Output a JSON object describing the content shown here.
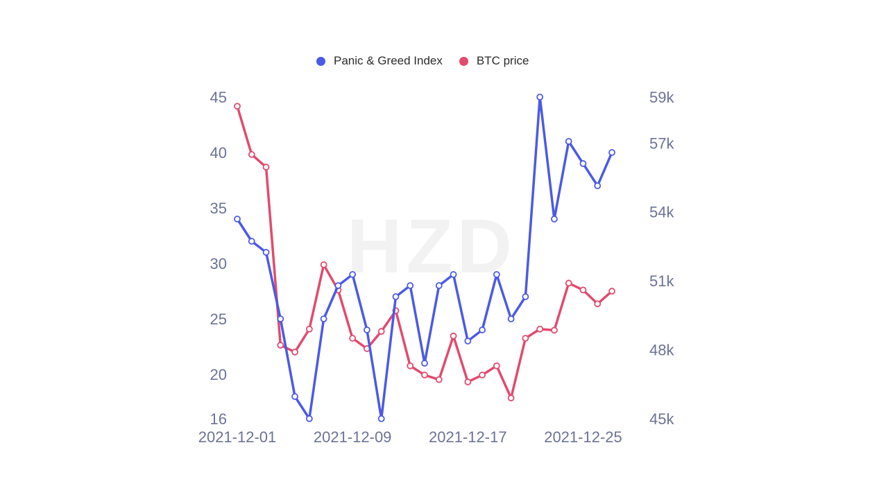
{
  "watermark": "HZD",
  "colors": {
    "index": "#4b5ae6",
    "price": "#e24a6e",
    "axis_text": "#6b7396"
  },
  "chart_data": {
    "type": "line",
    "legend": [
      "Panic & Greed Index",
      "BTC price"
    ],
    "x": [
      "2021-12-01",
      "2021-12-02",
      "2021-12-03",
      "2021-12-04",
      "2021-12-05",
      "2021-12-06",
      "2021-12-07",
      "2021-12-08",
      "2021-12-09",
      "2021-12-10",
      "2021-12-11",
      "2021-12-12",
      "2021-12-13",
      "2021-12-14",
      "2021-12-15",
      "2021-12-16",
      "2021-12-17",
      "2021-12-18",
      "2021-12-19",
      "2021-12-20",
      "2021-12-21",
      "2021-12-22",
      "2021-12-23",
      "2021-12-24",
      "2021-12-25",
      "2021-12-26",
      "2021-12-27"
    ],
    "x_tick_labels": [
      "2021-12-01",
      "2021-12-09",
      "2021-12-17",
      "2021-12-25"
    ],
    "series": [
      {
        "name": "Panic & Greed Index",
        "axis": "left",
        "values": [
          34,
          32,
          31,
          25,
          18,
          16,
          25,
          28,
          29,
          24,
          16,
          27,
          28,
          21,
          28,
          29,
          23,
          24,
          29,
          25,
          27,
          45,
          34,
          41,
          39,
          37,
          40
        ]
      },
      {
        "name": "BTC price",
        "axis": "right",
        "values": [
          58600,
          56500,
          55950,
          48200,
          47900,
          48900,
          51700,
          50600,
          48500,
          48050,
          48800,
          49700,
          47300,
          46900,
          46700,
          48600,
          46600,
          46900,
          47300,
          45900,
          48500,
          48900,
          48850,
          50900,
          50600,
          50000,
          50550
        ]
      }
    ],
    "y_left": {
      "ticks": [
        16,
        20,
        25,
        30,
        35,
        40,
        45
      ],
      "range": [
        16,
        45
      ]
    },
    "y_right": {
      "ticks": [
        "45k",
        "48k",
        "51k",
        "54k",
        "57k",
        "59k"
      ],
      "tick_values": [
        45000,
        48000,
        51000,
        54000,
        57000,
        59000
      ],
      "range": [
        45000,
        59000
      ]
    },
    "grid": false,
    "legend_position": "top-center"
  }
}
